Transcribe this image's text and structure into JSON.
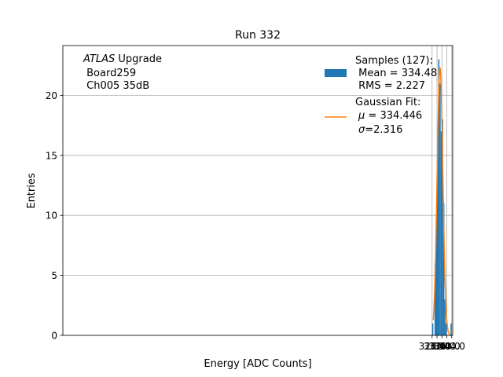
{
  "chart_data": {
    "type": "bar",
    "title": "Run 332",
    "xlabel": "Energy [ADC Counts]",
    "ylabel": "Entries",
    "xlim": [
      27.2,
      344.8
    ],
    "ylim": [
      0,
      24.15
    ],
    "x_ticks": [
      {
        "value": 328,
        "label": "328.0"
      },
      {
        "value": 332,
        "label": "332.0"
      },
      {
        "value": 336,
        "label": "336.0"
      },
      {
        "value": 340,
        "label": "340.0"
      },
      {
        "value": 344,
        "label": "344.0"
      }
    ],
    "y_ticks": [
      {
        "value": 0,
        "label": "0"
      },
      {
        "value": 5,
        "label": "5"
      },
      {
        "value": 10,
        "label": "10"
      },
      {
        "value": 15,
        "label": "15"
      },
      {
        "value": 20,
        "label": "20"
      }
    ],
    "grid": true,
    "bins": {
      "edges": [
        328,
        329,
        330,
        331,
        332,
        333,
        334,
        335,
        336,
        337,
        338,
        339,
        340,
        341,
        342,
        343,
        344
      ],
      "counts": [
        1,
        0,
        6,
        10,
        15,
        23,
        21,
        17,
        18,
        11,
        3,
        1,
        0,
        0,
        0,
        1
      ],
      "color": "#1f77b4"
    },
    "fit": {
      "mu": 334.446,
      "sigma": 2.316,
      "amplitude": 22.3,
      "x_range": [
        328.9,
        343.4
      ],
      "color": "#ff7f0e"
    },
    "annotation": {
      "line1_italic": "ATLAS",
      "line1_rest": " Upgrade",
      "line2": " Board259",
      "line3": " Ch005 35dB"
    },
    "legend": {
      "placement": "top-right",
      "samples": {
        "line1": "Samples (127):",
        "line2": " Mean = 334.48",
        "line3": " RMS = 2.227"
      },
      "fit": {
        "line1": "Gaussian Fit:",
        "mu_symbol": "μ",
        "mu_rest": " = 334.446",
        "sigma_symbol": "σ",
        "sigma_rest": "=2.316"
      }
    }
  }
}
